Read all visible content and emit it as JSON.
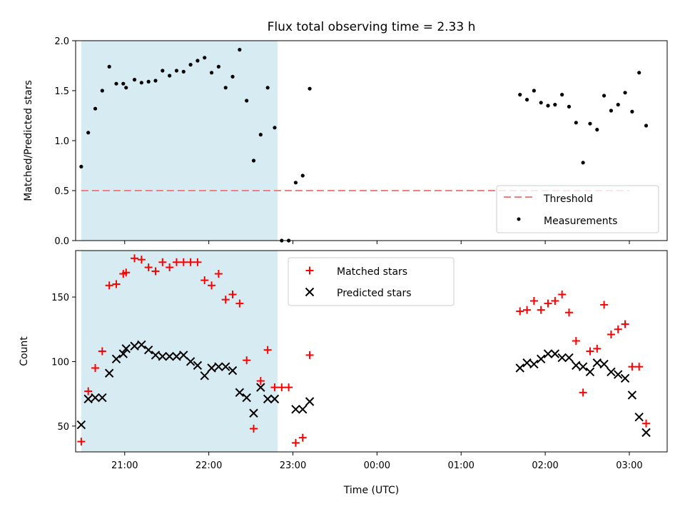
{
  "chart_data": [
    {
      "type": "scatter",
      "title": "Flux total observing time = 2.33 h",
      "xlabel": "",
      "ylabel": "Matched/Predicted stars",
      "ylim": [
        0,
        2.0
      ],
      "yticks": [
        "0.0",
        "0.5",
        "1.0",
        "1.5",
        "2.0"
      ],
      "x_tick_labels": [
        "21:00",
        "22:00",
        "23:00",
        "00:00",
        "01:00",
        "02:00",
        "03:00"
      ],
      "xlim": [
        "20:25",
        "03:27"
      ],
      "highlight_span": [
        "20:29",
        "22:49"
      ],
      "legend": {
        "position": "lower-right",
        "entries": [
          "Threshold",
          "Measurements"
        ]
      },
      "colors": {
        "threshold": "#f08080",
        "measurements": "#000000",
        "span": "#add8e6"
      },
      "threshold": {
        "name": "Threshold",
        "value": 0.5,
        "x_range": [
          "20:29",
          "03:00"
        ]
      },
      "series": [
        {
          "name": "Measurements",
          "points": [
            [
              "20:29",
              0.74
            ],
            [
              "20:34",
              1.08
            ],
            [
              "20:39",
              1.32
            ],
            [
              "20:44",
              1.5
            ],
            [
              "20:49",
              1.74
            ],
            [
              "20:54",
              1.57
            ],
            [
              "20:59",
              1.57
            ],
            [
              "21:01",
              1.53
            ],
            [
              "21:07",
              1.61
            ],
            [
              "21:12",
              1.58
            ],
            [
              "21:17",
              1.59
            ],
            [
              "21:22",
              1.6
            ],
            [
              "21:27",
              1.7
            ],
            [
              "21:32",
              1.65
            ],
            [
              "21:37",
              1.7
            ],
            [
              "21:42",
              1.69
            ],
            [
              "21:47",
              1.76
            ],
            [
              "21:52",
              1.8
            ],
            [
              "21:57",
              1.83
            ],
            [
              "22:02",
              1.68
            ],
            [
              "22:07",
              1.74
            ],
            [
              "22:12",
              1.53
            ],
            [
              "22:17",
              1.64
            ],
            [
              "22:22",
              1.91
            ],
            [
              "22:27",
              1.4
            ],
            [
              "22:32",
              0.8
            ],
            [
              "22:37",
              1.06
            ],
            [
              "22:42",
              1.53
            ],
            [
              "22:47",
              1.13
            ],
            [
              "22:52",
              0.0
            ],
            [
              "22:57",
              0.0
            ],
            [
              "23:02",
              0.58
            ],
            [
              "23:07",
              0.65
            ],
            [
              "23:12",
              1.52
            ],
            [
              "01:42",
              1.46
            ],
            [
              "01:47",
              1.41
            ],
            [
              "01:52",
              1.5
            ],
            [
              "01:57",
              1.38
            ],
            [
              "02:02",
              1.35
            ],
            [
              "02:07",
              1.36
            ],
            [
              "02:12",
              1.46
            ],
            [
              "02:17",
              1.34
            ],
            [
              "02:22",
              1.18
            ],
            [
              "02:27",
              0.78
            ],
            [
              "02:32",
              1.17
            ],
            [
              "02:37",
              1.11
            ],
            [
              "02:42",
              1.45
            ],
            [
              "02:47",
              1.3
            ],
            [
              "02:52",
              1.36
            ],
            [
              "02:57",
              1.48
            ],
            [
              "03:02",
              1.29
            ],
            [
              "03:07",
              1.68
            ],
            [
              "03:12",
              1.15
            ]
          ]
        }
      ]
    },
    {
      "type": "scatter",
      "title": "",
      "xlabel": "Time (UTC)",
      "ylabel": "Count",
      "ylim": [
        30,
        186
      ],
      "yticks": [
        "50",
        "100",
        "150"
      ],
      "x_tick_labels": [
        "21:00",
        "22:00",
        "23:00",
        "00:00",
        "01:00",
        "02:00",
        "03:00"
      ],
      "xlim": [
        "20:25",
        "03:27"
      ],
      "highlight_span": [
        "20:29",
        "22:49"
      ],
      "legend": {
        "position": "top-center",
        "entries": [
          "Matched stars",
          "Predicted stars"
        ]
      },
      "colors": {
        "matched": "#ff0000",
        "predicted": "#000000",
        "span": "#add8e6"
      },
      "series": [
        {
          "name": "Matched stars",
          "marker": "plus",
          "points": [
            [
              "20:29",
              38
            ],
            [
              "20:34",
              77
            ],
            [
              "20:39",
              95
            ],
            [
              "20:44",
              108
            ],
            [
              "20:49",
              159
            ],
            [
              "20:54",
              160
            ],
            [
              "20:59",
              168
            ],
            [
              "21:01",
              169
            ],
            [
              "21:07",
              180
            ],
            [
              "21:12",
              179
            ],
            [
              "21:17",
              173
            ],
            [
              "21:22",
              170
            ],
            [
              "21:27",
              177
            ],
            [
              "21:32",
              173
            ],
            [
              "21:37",
              177
            ],
            [
              "21:42",
              177
            ],
            [
              "21:47",
              177
            ],
            [
              "21:52",
              177
            ],
            [
              "21:57",
              163
            ],
            [
              "22:02",
              159
            ],
            [
              "22:07",
              168
            ],
            [
              "22:12",
              148
            ],
            [
              "22:17",
              152
            ],
            [
              "22:22",
              145
            ],
            [
              "22:27",
              101
            ],
            [
              "22:32",
              48
            ],
            [
              "22:37",
              85
            ],
            [
              "22:42",
              109
            ],
            [
              "22:47",
              80
            ],
            [
              "22:52",
              80
            ],
            [
              "22:57",
              80
            ],
            [
              "23:02",
              37
            ],
            [
              "23:07",
              41
            ],
            [
              "23:12",
              105
            ],
            [
              "01:42",
              139
            ],
            [
              "01:47",
              140
            ],
            [
              "01:52",
              147
            ],
            [
              "01:57",
              140
            ],
            [
              "02:02",
              145
            ],
            [
              "02:07",
              147
            ],
            [
              "02:12",
              152
            ],
            [
              "02:17",
              138
            ],
            [
              "02:22",
              116
            ],
            [
              "02:27",
              76
            ],
            [
              "02:32",
              108
            ],
            [
              "02:37",
              110
            ],
            [
              "02:42",
              144
            ],
            [
              "02:47",
              121
            ],
            [
              "02:52",
              125
            ],
            [
              "02:57",
              129
            ],
            [
              "03:02",
              96
            ],
            [
              "03:07",
              96
            ],
            [
              "03:12",
              52
            ]
          ]
        },
        {
          "name": "Predicted stars",
          "marker": "x",
          "points": [
            [
              "20:29",
              51
            ],
            [
              "20:34",
              71
            ],
            [
              "20:39",
              72
            ],
            [
              "20:44",
              72
            ],
            [
              "20:49",
              91
            ],
            [
              "20:54",
              102
            ],
            [
              "20:59",
              106
            ],
            [
              "21:01",
              110
            ],
            [
              "21:07",
              112
            ],
            [
              "21:12",
              113
            ],
            [
              "21:17",
              109
            ],
            [
              "21:22",
              105
            ],
            [
              "21:27",
              104
            ],
            [
              "21:32",
              104
            ],
            [
              "21:37",
              104
            ],
            [
              "21:42",
              105
            ],
            [
              "21:47",
              100
            ],
            [
              "21:52",
              97
            ],
            [
              "21:57",
              89
            ],
            [
              "22:02",
              95
            ],
            [
              "22:07",
              96
            ],
            [
              "22:12",
              96
            ],
            [
              "22:17",
              93
            ],
            [
              "22:22",
              76
            ],
            [
              "22:27",
              72
            ],
            [
              "22:32",
              60
            ],
            [
              "22:37",
              80
            ],
            [
              "22:42",
              71
            ],
            [
              "22:47",
              71
            ],
            [
              "23:02",
              63
            ],
            [
              "23:07",
              63
            ],
            [
              "23:12",
              69
            ],
            [
              "01:42",
              95
            ],
            [
              "01:47",
              99
            ],
            [
              "01:52",
              98
            ],
            [
              "01:57",
              102
            ],
            [
              "02:02",
              106
            ],
            [
              "02:07",
              106
            ],
            [
              "02:12",
              103
            ],
            [
              "02:17",
              103
            ],
            [
              "02:22",
              97
            ],
            [
              "02:27",
              96
            ],
            [
              "02:32",
              92
            ],
            [
              "02:37",
              99
            ],
            [
              "02:42",
              98
            ],
            [
              "02:47",
              92
            ],
            [
              "02:52",
              90
            ],
            [
              "02:57",
              87
            ],
            [
              "03:02",
              74
            ],
            [
              "03:07",
              57
            ],
            [
              "03:12",
              45
            ]
          ]
        }
      ]
    }
  ]
}
